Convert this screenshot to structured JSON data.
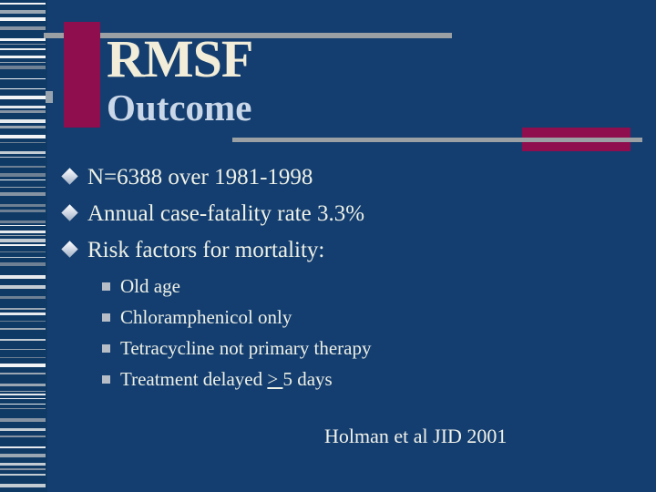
{
  "slide": {
    "title": "RMSF",
    "subtitle": "Outcome",
    "bullets": [
      "N=6388 over 1981-1998",
      "Annual case-fatality rate 3.3%",
      "Risk factors for mortality:"
    ],
    "sub_bullets": [
      "Old age",
      "Chloramphenicol only",
      "Tetracycline not primary therapy"
    ],
    "sub_bullet_delay": {
      "prefix": "Treatment delayed ",
      "comparator": "> ",
      "suffix": "5 days"
    },
    "citation": "Holman et al JID 2001",
    "colors": {
      "background": "#143e70",
      "filmstrip_background": "#0f3a66",
      "accent_maroon": "#8e0e4e",
      "divider_gray": "#9aa0a4",
      "title_ivory": "#f2edd8",
      "subtitle_blue": "#c9d7e8",
      "body_text": "#eef1e6"
    }
  }
}
